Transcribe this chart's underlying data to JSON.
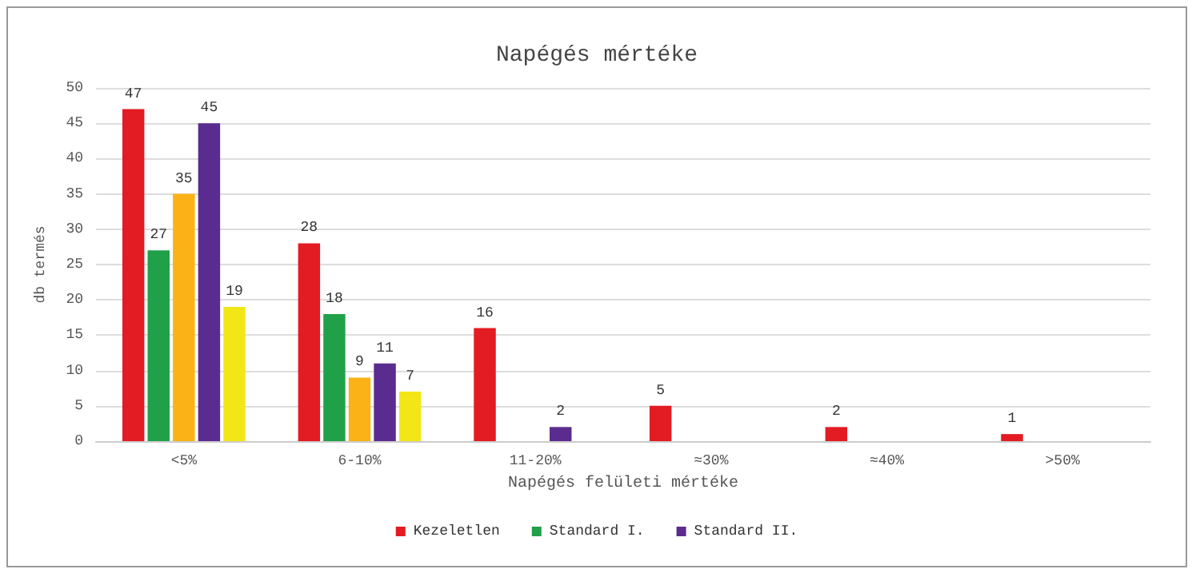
{
  "chart_data": {
    "type": "bar",
    "title": "Napégés mértéke",
    "xlabel": "Napégés felületi mértéke",
    "ylabel": "db termés",
    "categories": [
      "<5%",
      "6-10%",
      "11-20%",
      "≈30%",
      "≈40%",
      ">50%"
    ],
    "series": [
      {
        "name": "Kezeletlen",
        "color": "#e31b23",
        "values": [
          47,
          28,
          16,
          5,
          2,
          1
        ]
      },
      {
        "name": "Standard I.",
        "color": "#21a04a",
        "values": [
          27,
          18,
          null,
          null,
          null,
          null
        ]
      },
      {
        "color": "#fbb217",
        "values": [
          35,
          9,
          null,
          null,
          null,
          null
        ]
      },
      {
        "name": "Standard II.",
        "color": "#5b2c8f",
        "values": [
          45,
          11,
          2,
          null,
          null,
          null
        ]
      },
      {
        "color": "#f2e617",
        "values": [
          19,
          7,
          null,
          null,
          null,
          null
        ]
      }
    ],
    "ylim": [
      0,
      50
    ],
    "yticks": [
      0,
      5,
      10,
      15,
      20,
      25,
      30,
      35,
      40,
      45,
      50
    ],
    "grid": "y",
    "legend": "bottom",
    "data_labels": true
  }
}
